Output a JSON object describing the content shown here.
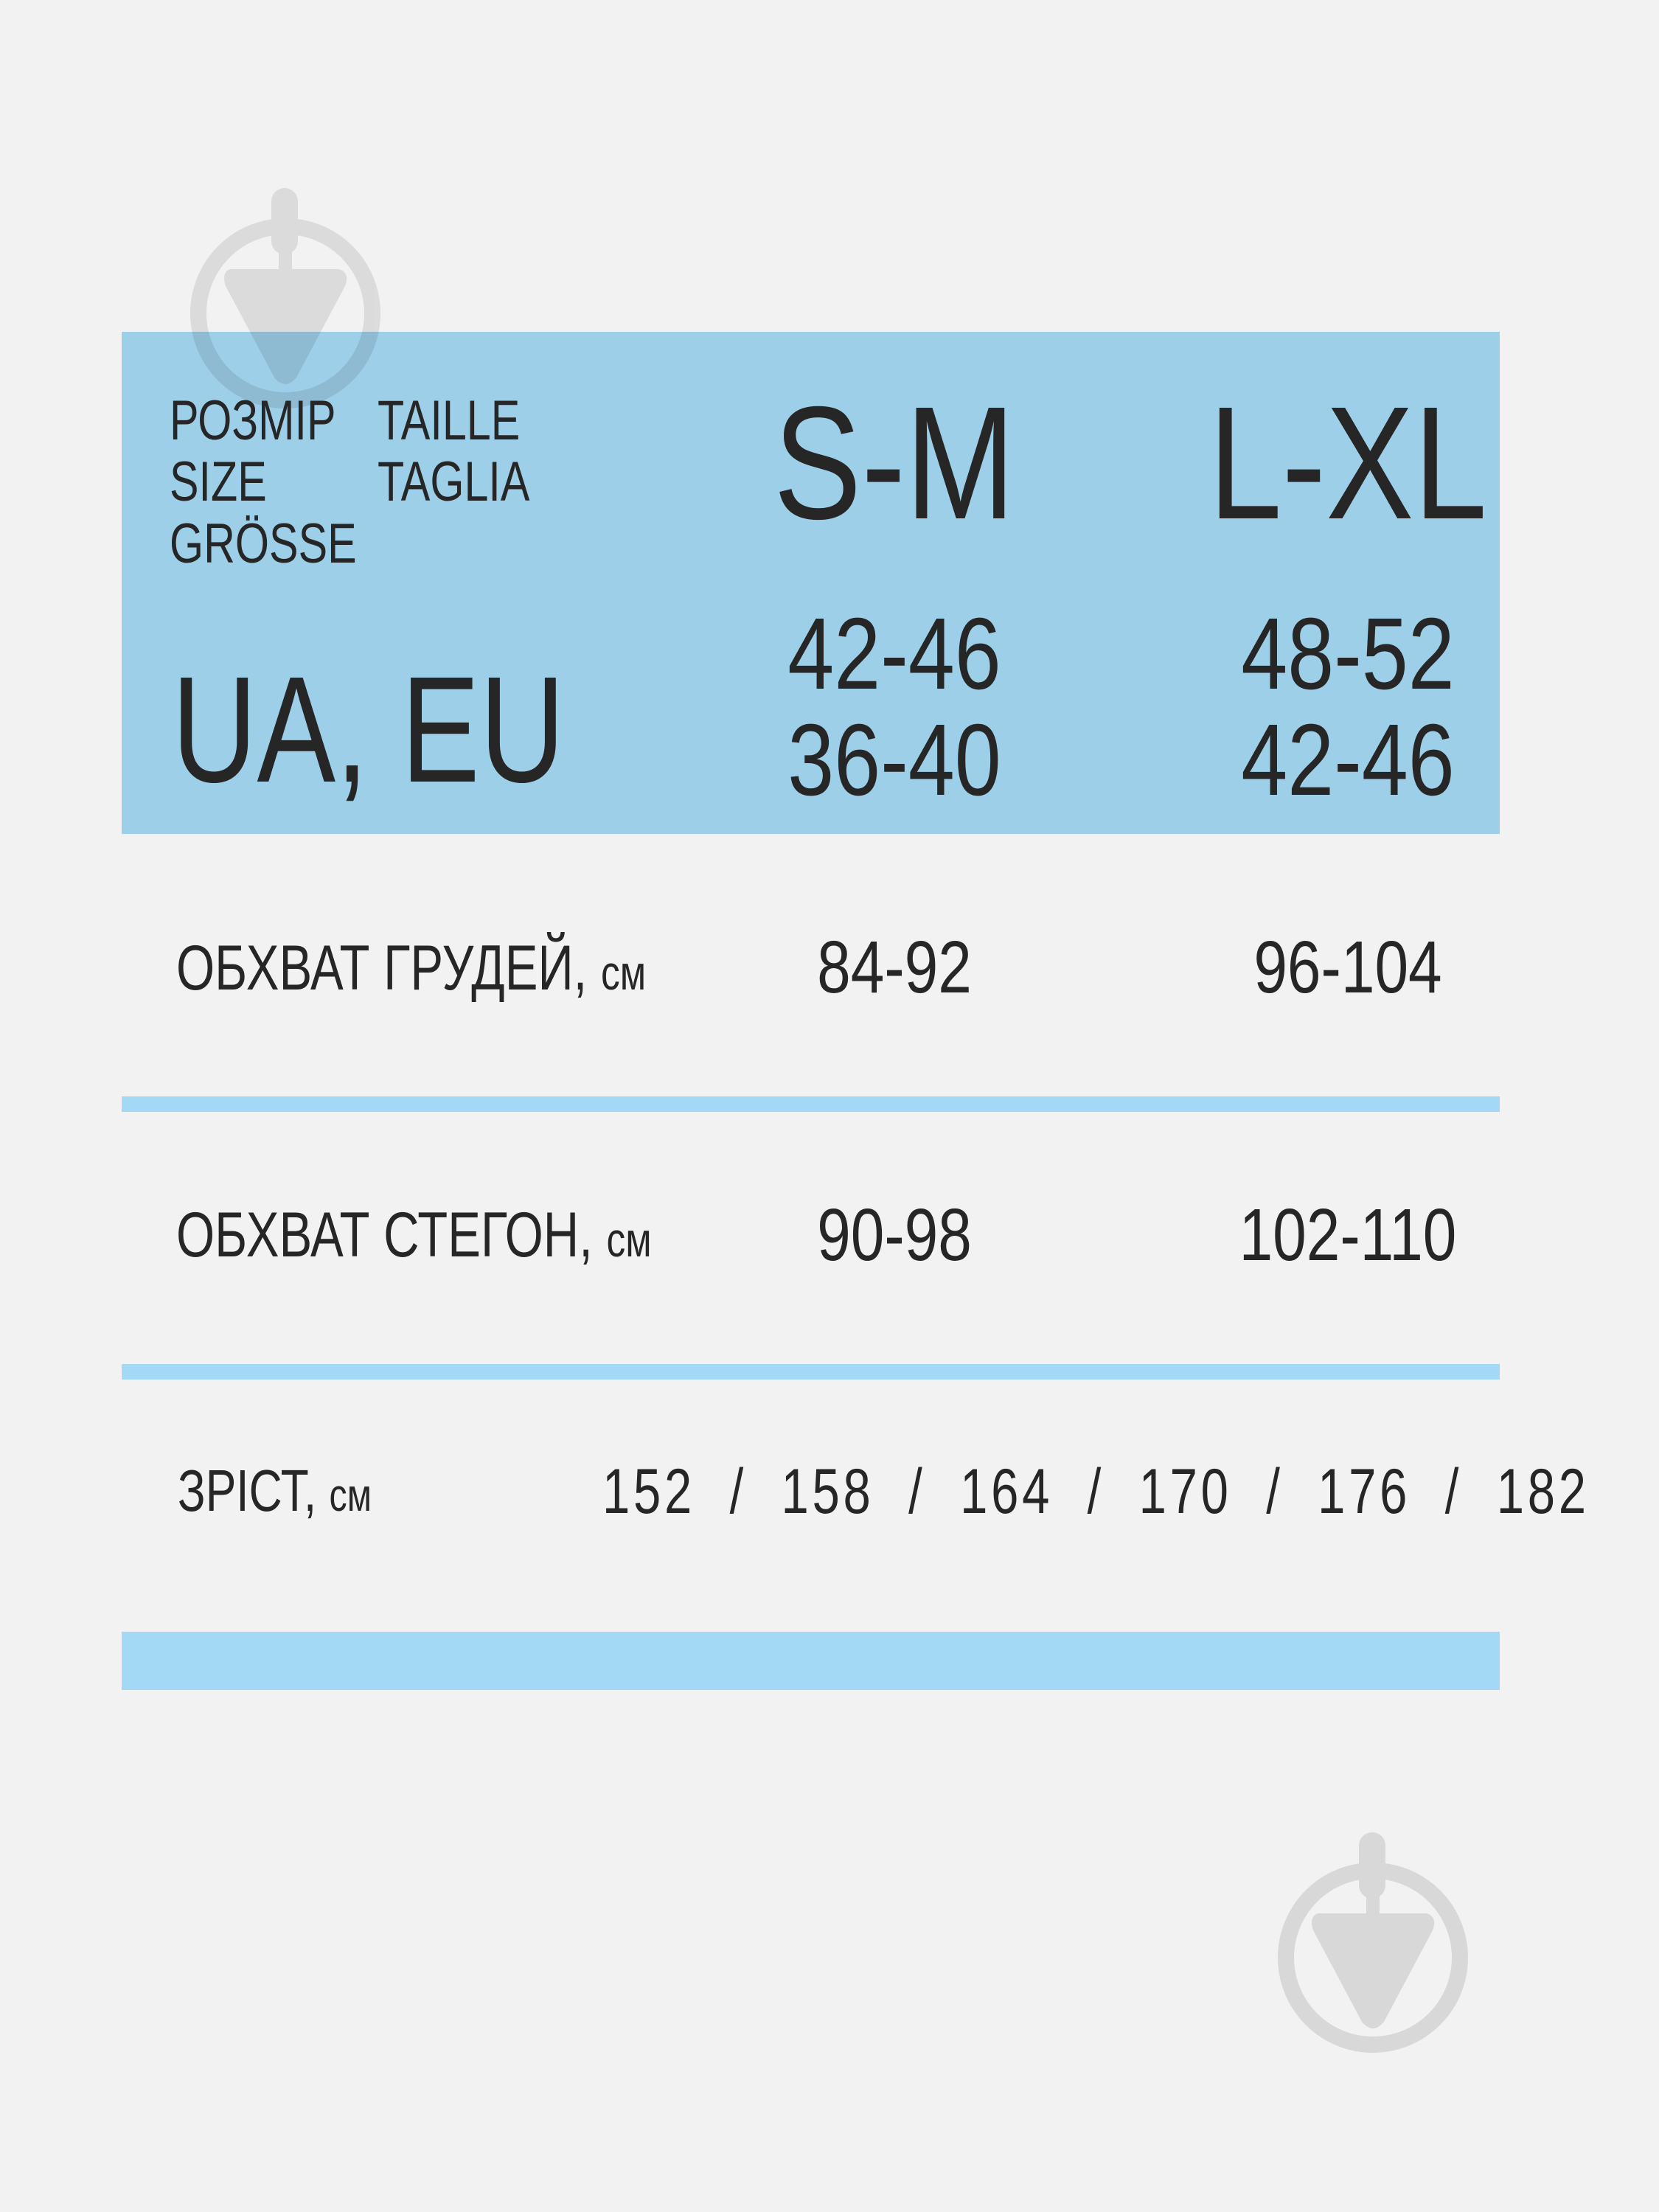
{
  "colors": {
    "background": "#f2f2f2",
    "accent": "#a3d9f5",
    "text": "#262626",
    "watermark": "#d8d8d8"
  },
  "header": {
    "size_labels": [
      "РОЗМІР",
      "SIZE",
      "GRÖSSE"
    ],
    "size_labels_2": [
      "TAILLE",
      "TAGLIA"
    ],
    "region": "UA, EU",
    "columns": [
      {
        "size": "S-M",
        "ua": "42-46",
        "eu": "36-40"
      },
      {
        "size": "L-XL",
        "ua": "48-52",
        "eu": "42-46"
      }
    ]
  },
  "rows": [
    {
      "label": "ОБХВАТ ГРУДЕЙ,",
      "unit": "см",
      "values": [
        "84-92",
        "96-104"
      ]
    },
    {
      "label": "ОБХВАТ СТЕГОН,",
      "unit": "см",
      "values": [
        "90-98",
        "102-110"
      ]
    }
  ],
  "height_row": {
    "label": "ЗРІСТ,",
    "unit": "см",
    "values": "152  /  158  /  164  /  170  /  176  /  182"
  },
  "watermark_icon": "trowel-circle-icon"
}
